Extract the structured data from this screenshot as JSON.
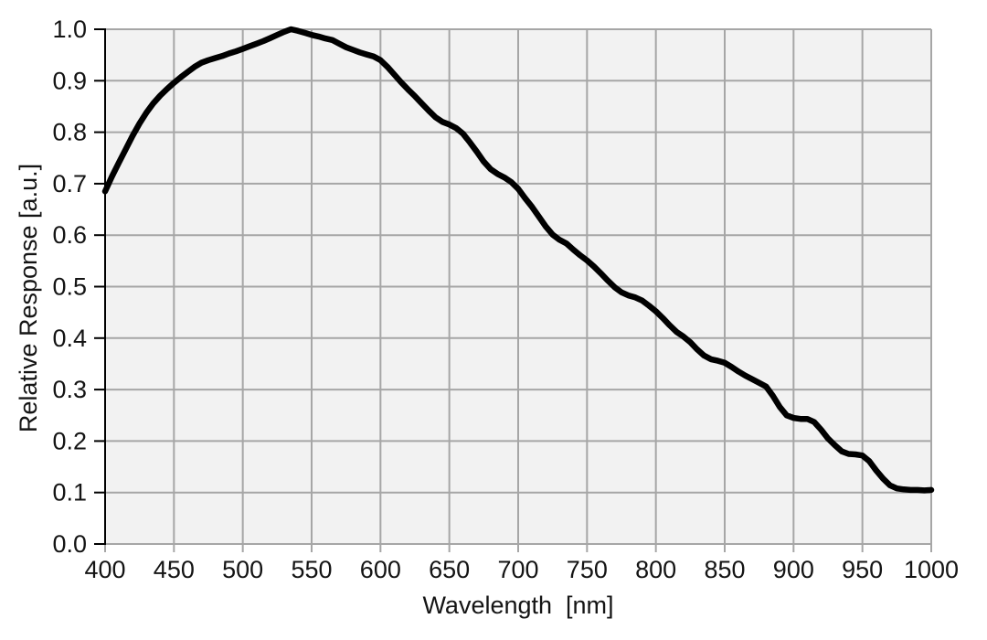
{
  "page": {
    "background_color": "#ffffff"
  },
  "chart_data": {
    "type": "line",
    "title": "",
    "xlabel": "Wavelength  [nm]",
    "ylabel": "Relative Response [a.u.]",
    "xlim": [
      400,
      1000
    ],
    "ylim": [
      0.0,
      1.0
    ],
    "grid": true,
    "legend": "none",
    "xticks": [
      400,
      450,
      500,
      550,
      600,
      650,
      700,
      750,
      800,
      850,
      900,
      950,
      1000
    ],
    "xtick_labels": [
      "400",
      "450",
      "500",
      "550",
      "600",
      "650",
      "700",
      "750",
      "800",
      "850",
      "900",
      "950",
      "1000"
    ],
    "yticks": [
      0.0,
      0.1,
      0.2,
      0.3,
      0.4,
      0.5,
      0.6,
      0.7,
      0.8,
      0.9,
      1.0
    ],
    "ytick_labels": [
      "0.0",
      "0.1",
      "0.2",
      "0.3",
      "0.4",
      "0.5",
      "0.6",
      "0.7",
      "0.8",
      "0.9",
      "1.0"
    ],
    "styles": {
      "plot_bg": "#f2f2f2",
      "grid_color": "#a6a6a6",
      "axis_color": "#000000",
      "line_color": "#000000",
      "line_width": 6.5,
      "tick_label_color": "#141414"
    },
    "series": [
      {
        "name": "relative-response",
        "x": [
          400,
          405,
          410,
          415,
          420,
          425,
          430,
          435,
          440,
          445,
          450,
          455,
          460,
          465,
          470,
          475,
          480,
          485,
          490,
          495,
          500,
          505,
          510,
          515,
          520,
          525,
          530,
          535,
          540,
          545,
          550,
          555,
          560,
          565,
          570,
          575,
          580,
          585,
          590,
          595,
          600,
          605,
          610,
          615,
          620,
          625,
          630,
          635,
          640,
          645,
          650,
          655,
          660,
          665,
          670,
          675,
          680,
          685,
          690,
          695,
          700,
          705,
          710,
          715,
          720,
          725,
          730,
          735,
          740,
          745,
          750,
          755,
          760,
          765,
          770,
          775,
          780,
          785,
          790,
          795,
          800,
          805,
          810,
          815,
          820,
          825,
          830,
          835,
          840,
          845,
          850,
          855,
          860,
          865,
          870,
          875,
          880,
          885,
          890,
          895,
          900,
          905,
          910,
          915,
          920,
          925,
          930,
          935,
          940,
          945,
          950,
          955,
          960,
          965,
          970,
          975,
          980,
          985,
          990,
          995,
          1000
        ],
        "y": [
          0.685,
          0.714,
          0.741,
          0.767,
          0.793,
          0.817,
          0.838,
          0.856,
          0.871,
          0.884,
          0.896,
          0.907,
          0.917,
          0.927,
          0.935,
          0.94,
          0.944,
          0.948,
          0.953,
          0.957,
          0.962,
          0.967,
          0.972,
          0.977,
          0.983,
          0.989,
          0.995,
          1.0,
          0.997,
          0.993,
          0.989,
          0.986,
          0.982,
          0.979,
          0.972,
          0.965,
          0.96,
          0.955,
          0.951,
          0.947,
          0.94,
          0.927,
          0.912,
          0.897,
          0.883,
          0.87,
          0.856,
          0.842,
          0.829,
          0.82,
          0.815,
          0.808,
          0.797,
          0.78,
          0.762,
          0.743,
          0.728,
          0.719,
          0.712,
          0.703,
          0.69,
          0.672,
          0.655,
          0.636,
          0.617,
          0.601,
          0.591,
          0.584,
          0.572,
          0.561,
          0.551,
          0.539,
          0.526,
          0.512,
          0.499,
          0.489,
          0.483,
          0.479,
          0.473,
          0.463,
          0.452,
          0.439,
          0.425,
          0.412,
          0.403,
          0.392,
          0.378,
          0.366,
          0.359,
          0.356,
          0.352,
          0.344,
          0.335,
          0.327,
          0.32,
          0.313,
          0.306,
          0.288,
          0.266,
          0.25,
          0.245,
          0.243,
          0.243,
          0.237,
          0.222,
          0.205,
          0.192,
          0.18,
          0.175,
          0.174,
          0.172,
          0.161,
          0.143,
          0.127,
          0.114,
          0.108,
          0.106,
          0.105,
          0.105,
          0.104,
          0.105
        ]
      }
    ]
  }
}
